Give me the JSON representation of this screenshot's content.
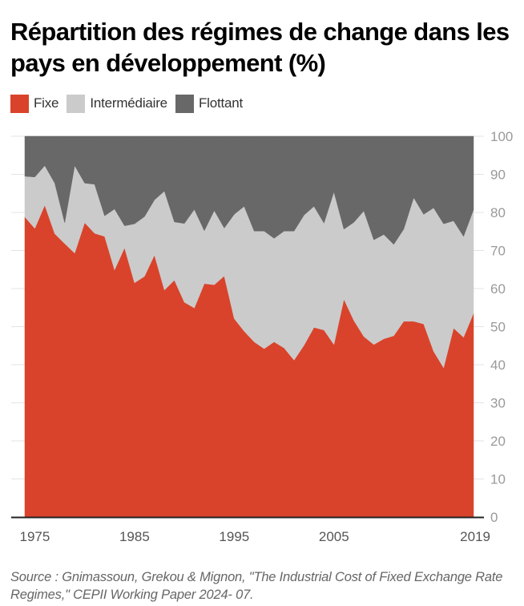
{
  "title": "Répartition des régimes de change dans les pays en développement (%)",
  "source": "Source : Gnimassoun, Grekou & Mignon, \"The Industrial Cost of Fixed Exchange Rate Regimes,\" CEPII Working Paper 2024- 07.",
  "colors": {
    "fixe": "#d9432b",
    "intermediaire": "#cbcbcb",
    "flottant": "#686868",
    "grid": "#e3e3e3",
    "axis": "#222222"
  },
  "chart_data": {
    "type": "area",
    "stacked": true,
    "title": "Répartition des régimes de change dans les pays en développement (%)",
    "xlabel": "",
    "ylabel": "",
    "xlim": [
      1974,
      2019
    ],
    "ylim": [
      0,
      100
    ],
    "grid": true,
    "legend_position": "top-left",
    "y_axis_position": "right",
    "y_ticks": [
      "0",
      "10",
      "20",
      "30",
      "40",
      "50",
      "60",
      "70",
      "80",
      "90",
      "100"
    ],
    "x_ticks": [
      {
        "year": 1975,
        "label": "1975"
      },
      {
        "year": 1985,
        "label": "1985"
      },
      {
        "year": 1995,
        "label": "1995"
      },
      {
        "year": 2005,
        "label": "2005"
      },
      {
        "year": 2019,
        "label": "2019"
      }
    ],
    "x": [
      1974,
      1975,
      1976,
      1977,
      1978,
      1979,
      1980,
      1981,
      1982,
      1983,
      1984,
      1985,
      1986,
      1987,
      1988,
      1989,
      1990,
      1991,
      1992,
      1993,
      1994,
      1995,
      1996,
      1997,
      1998,
      1999,
      2000,
      2001,
      2002,
      2003,
      2004,
      2005,
      2006,
      2007,
      2008,
      2009,
      2010,
      2011,
      2012,
      2013,
      2014,
      2015,
      2016,
      2017,
      2018,
      2019
    ],
    "series": [
      {
        "name": "Fixe",
        "key": "fixe",
        "values": [
          78.8,
          75.8,
          81.9,
          74.4,
          71.8,
          69.3,
          77.3,
          74.5,
          73.7,
          64.9,
          70.7,
          61.5,
          63.2,
          68.8,
          59.6,
          62.2,
          56.4,
          54.9,
          61.3,
          61.0,
          63.3,
          52.1,
          48.8,
          46.0,
          44.2,
          46.0,
          44.4,
          41.2,
          45.1,
          49.8,
          49.1,
          45.3,
          57.2,
          51.6,
          47.4,
          45.3,
          46.8,
          47.6,
          51.4,
          51.4,
          50.7,
          43.5,
          39.2,
          49.6,
          47.2,
          53.5
        ]
      },
      {
        "name": "Intermédiaire",
        "key": "intermediaire",
        "values": [
          10.7,
          13.5,
          10.4,
          13.3,
          5.5,
          23.0,
          10.4,
          12.9,
          5.4,
          16.0,
          5.8,
          15.5,
          15.7,
          14.5,
          26.0,
          15.3,
          20.7,
          25.9,
          13.9,
          19.5,
          12.6,
          27.4,
          32.8,
          29.1,
          30.9,
          27.2,
          30.7,
          33.9,
          34.2,
          31.8,
          28.1,
          40.1,
          18.4,
          25.8,
          33.0,
          27.5,
          27.4,
          24.0,
          24.2,
          32.5,
          28.8,
          37.7,
          37.8,
          28.2,
          26.5,
          27.2
        ]
      },
      {
        "name": "Flottant",
        "key": "flottant",
        "values": [
          10.5,
          10.7,
          7.7,
          12.3,
          22.7,
          7.7,
          12.3,
          12.6,
          20.9,
          19.1,
          23.5,
          23.0,
          21.1,
          16.7,
          14.4,
          22.5,
          22.9,
          19.2,
          24.8,
          19.5,
          24.1,
          20.5,
          18.4,
          24.9,
          24.9,
          26.8,
          24.9,
          24.9,
          20.7,
          18.4,
          22.8,
          14.6,
          24.4,
          22.6,
          19.6,
          27.2,
          25.8,
          28.4,
          24.4,
          16.1,
          20.5,
          18.8,
          23.0,
          22.2,
          26.3,
          19.3
        ]
      }
    ]
  }
}
